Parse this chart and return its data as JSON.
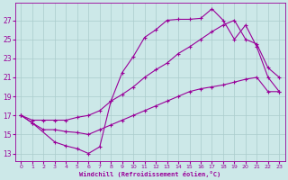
{
  "xlabel": "Windchill (Refroidissement éolien,°C)",
  "bg_color": "#cce8e8",
  "grid_color": "#aacccc",
  "line_color": "#990099",
  "x_ticks": [
    0,
    1,
    2,
    3,
    4,
    5,
    6,
    7,
    8,
    9,
    10,
    11,
    12,
    13,
    14,
    15,
    16,
    17,
    18,
    19,
    20,
    21,
    22,
    23
  ],
  "y_ticks": [
    13,
    15,
    17,
    19,
    21,
    23,
    25,
    27
  ],
  "xlim": [
    -0.5,
    23.5
  ],
  "ylim": [
    12.2,
    28.8
  ],
  "line1_x": [
    0,
    1,
    3,
    4,
    5,
    6,
    7,
    8,
    9,
    10,
    11,
    12,
    13,
    14,
    15,
    16,
    17,
    18,
    19,
    20,
    21,
    22,
    23
  ],
  "line1_y": [
    17.0,
    16.2,
    14.2,
    13.8,
    13.5,
    13.0,
    13.7,
    18.5,
    21.5,
    23.2,
    25.2,
    26.0,
    27.0,
    27.1,
    27.1,
    27.2,
    28.2,
    27.0,
    25.0,
    26.5,
    24.2,
    21.0,
    19.5
  ],
  "line2_x": [
    0,
    1,
    2,
    3,
    4,
    5,
    6,
    7,
    8,
    9,
    10,
    11,
    12,
    13,
    14,
    15,
    16,
    17,
    18,
    19,
    20,
    21,
    22,
    23
  ],
  "line2_y": [
    17.0,
    16.5,
    16.5,
    16.5,
    16.5,
    16.8,
    17.0,
    17.5,
    18.5,
    19.2,
    20.0,
    21.0,
    21.8,
    22.5,
    23.5,
    24.2,
    25.0,
    25.8,
    26.5,
    27.0,
    25.0,
    24.5,
    22.0,
    21.0
  ],
  "line3_x": [
    0,
    1,
    2,
    3,
    4,
    5,
    6,
    7,
    8,
    9,
    10,
    11,
    12,
    13,
    14,
    15,
    16,
    17,
    18,
    19,
    20,
    21,
    22,
    23
  ],
  "line3_y": [
    17.0,
    16.2,
    15.5,
    15.5,
    15.3,
    15.2,
    15.0,
    15.5,
    16.0,
    16.5,
    17.0,
    17.5,
    18.0,
    18.5,
    19.0,
    19.5,
    19.8,
    20.0,
    20.2,
    20.5,
    20.8,
    21.0,
    19.5,
    19.5
  ]
}
